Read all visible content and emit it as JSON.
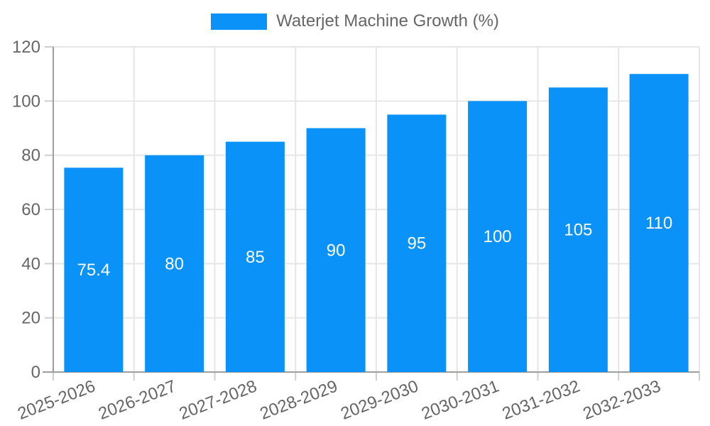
{
  "chart_data": {
    "type": "bar",
    "title": "Waterjet Machine Growth (%)",
    "legend_position": "top",
    "categories": [
      "2025-2026",
      "2026-2027",
      "2027-2028",
      "2028-2029",
      "2029-2030",
      "2030-2031",
      "2031-2032",
      "2032-2033"
    ],
    "values": [
      75.4,
      80,
      85,
      90,
      95,
      100,
      105,
      110
    ],
    "value_labels": [
      "75.4",
      "80",
      "85",
      "90",
      "95",
      "100",
      "105",
      "110"
    ],
    "xlabel": "",
    "ylabel": "",
    "ylim": [
      0,
      120
    ],
    "yticks": [
      0,
      20,
      40,
      60,
      80,
      100,
      120
    ],
    "grid": true,
    "x_tick_rotation_deg": -21,
    "bar_color": "#0b92f8",
    "value_label_color": "#ffffff",
    "tick_label_color": "#666666",
    "grid_color": "#e6e6e6",
    "axis_color": "#9e9e9e",
    "tick_mark_color": "#cfcfcf",
    "background": "#ffffff"
  }
}
